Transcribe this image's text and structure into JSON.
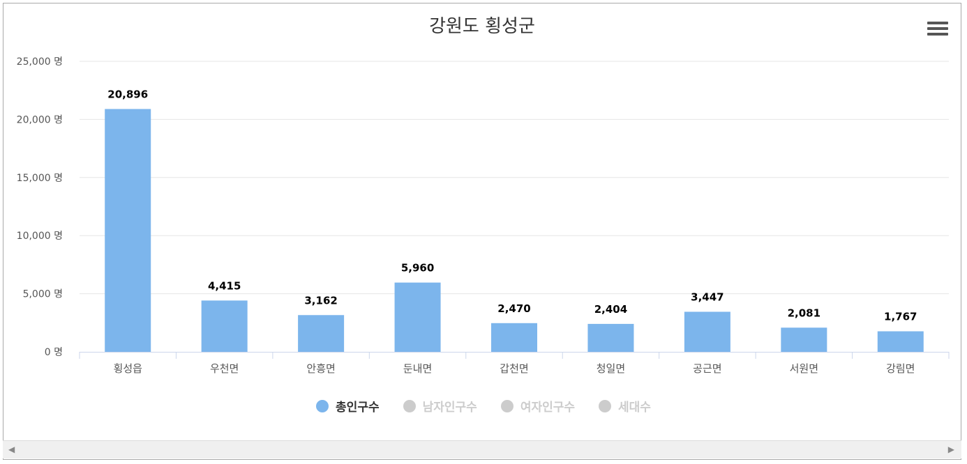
{
  "chart_data": {
    "type": "bar",
    "title": "강원도 횡성군",
    "categories": [
      "횡성읍",
      "우천면",
      "안흥면",
      "둔내면",
      "갑천면",
      "청일면",
      "공근면",
      "서원면",
      "강림면"
    ],
    "series": [
      {
        "name": "총인구수",
        "values": [
          20896,
          4415,
          3162,
          5960,
          2470,
          2404,
          3447,
          2081,
          1767
        ],
        "visible": true,
        "color": "#7cb5ec"
      },
      {
        "name": "남자인구수",
        "visible": false,
        "color": "#cccccc"
      },
      {
        "name": "여자인구수",
        "visible": false,
        "color": "#cccccc"
      },
      {
        "name": "세대수",
        "visible": false,
        "color": "#cccccc"
      }
    ],
    "data_labels": [
      "20,896",
      "4,415",
      "3,162",
      "5,960",
      "2,470",
      "2,404",
      "3,447",
      "2,081",
      "1,767"
    ],
    "y_ticks": [
      0,
      5000,
      10000,
      15000,
      20000,
      25000
    ],
    "y_tick_labels": [
      "0 명",
      "5,000 명",
      "10,000 명",
      "15,000 명",
      "20,000 명",
      "25,000 명"
    ],
    "ylim": [
      0,
      25000
    ],
    "grid": true,
    "legend_position": "bottom-center"
  },
  "icons": {
    "menu": "hamburger-menu-icon",
    "scroll_left": "arrow-left-icon",
    "scroll_right": "arrow-right-icon"
  },
  "colors": {
    "bar": "#7cb5ec",
    "legend_active_text": "#333333",
    "legend_inactive_text": "#cccccc",
    "grid": "#e6e6e6"
  }
}
